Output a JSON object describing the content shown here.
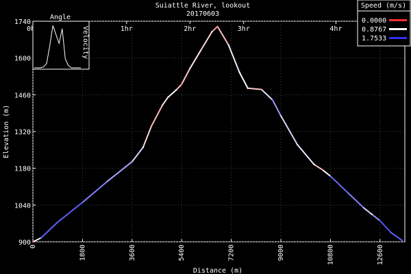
{
  "chart_data": {
    "type": "line",
    "title": "Suiattle River, lookout",
    "subtitle": "20170603",
    "xlabel": "Distance (m)",
    "ylabel": "Elevation (m)",
    "xlim": [
      0,
      13500
    ],
    "ylim": [
      900,
      1740
    ],
    "x_ticks": [
      "0",
      "1800",
      "3600",
      "5400",
      "7200",
      "9000",
      "10800",
      "12600"
    ],
    "y_ticks": [
      "900",
      "1040",
      "1180",
      "1320",
      "1460",
      "1600",
      "1740"
    ],
    "top_axis_ticks": [
      {
        "label": "0hr",
        "distance": 0
      },
      {
        "label": "1hr",
        "distance": 3400
      },
      {
        "label": "2hr",
        "distance": 5700
      },
      {
        "label": "3hr",
        "distance": 7650
      },
      {
        "label": "4hr",
        "distance": 11000
      }
    ],
    "legend": {
      "title": "Speed (m/s)",
      "placement": "top-right",
      "entries": [
        {
          "label": "0.0000",
          "color": "#ff3030"
        },
        {
          "label": "0.8767",
          "color": "#ffffff"
        },
        {
          "label": "1.7533",
          "color": "#3030ff"
        }
      ]
    },
    "series": [
      {
        "points": [
          {
            "x": 0,
            "y": 900,
            "speed": 0.2
          },
          {
            "x": 300,
            "y": 915,
            "speed": 1.5
          },
          {
            "x": 900,
            "y": 975,
            "speed": 1.6
          },
          {
            "x": 1800,
            "y": 1050,
            "speed": 1.5
          },
          {
            "x": 2700,
            "y": 1130,
            "speed": 1.3
          },
          {
            "x": 3600,
            "y": 1205,
            "speed": 1.2
          },
          {
            "x": 4000,
            "y": 1260,
            "speed": 0.9
          },
          {
            "x": 4300,
            "y": 1340,
            "speed": 0.5
          },
          {
            "x": 4700,
            "y": 1420,
            "speed": 0.7
          },
          {
            "x": 4900,
            "y": 1450,
            "speed": 0.8
          },
          {
            "x": 5200,
            "y": 1478,
            "speed": 0.9
          },
          {
            "x": 5400,
            "y": 1500,
            "speed": 0.3
          },
          {
            "x": 5700,
            "y": 1560,
            "speed": 1.0
          },
          {
            "x": 6100,
            "y": 1630,
            "speed": 0.6
          },
          {
            "x": 6500,
            "y": 1700,
            "speed": 0.8
          },
          {
            "x": 6700,
            "y": 1720,
            "speed": 0.2
          },
          {
            "x": 7100,
            "y": 1650,
            "speed": 1.0
          },
          {
            "x": 7500,
            "y": 1545,
            "speed": 0.9
          },
          {
            "x": 7800,
            "y": 1485,
            "speed": 0.8
          },
          {
            "x": 8300,
            "y": 1480,
            "speed": 0.5
          },
          {
            "x": 8700,
            "y": 1440,
            "speed": 1.5
          },
          {
            "x": 9000,
            "y": 1380,
            "speed": 1.1
          },
          {
            "x": 9600,
            "y": 1270,
            "speed": 1.0
          },
          {
            "x": 10200,
            "y": 1195,
            "speed": 0.9
          },
          {
            "x": 10500,
            "y": 1175,
            "speed": 0.4
          },
          {
            "x": 10800,
            "y": 1150,
            "speed": 1.4
          },
          {
            "x": 11400,
            "y": 1090,
            "speed": 1.6
          },
          {
            "x": 12000,
            "y": 1030,
            "speed": 1.2
          },
          {
            "x": 12300,
            "y": 1005,
            "speed": 0.9
          },
          {
            "x": 12600,
            "y": 980,
            "speed": 1.7
          },
          {
            "x": 13000,
            "y": 935,
            "speed": 1.5
          },
          {
            "x": 13400,
            "y": 905,
            "speed": 1.6
          }
        ]
      }
    ],
    "inset": {
      "labels": [
        "Angle",
        "Velocity"
      ],
      "curve": [
        0,
        0,
        0,
        0.02,
        0.1,
        0.5,
        0.95,
        0.75,
        0.55,
        0.88,
        0.2,
        0.05,
        0,
        0,
        0,
        0
      ]
    }
  }
}
